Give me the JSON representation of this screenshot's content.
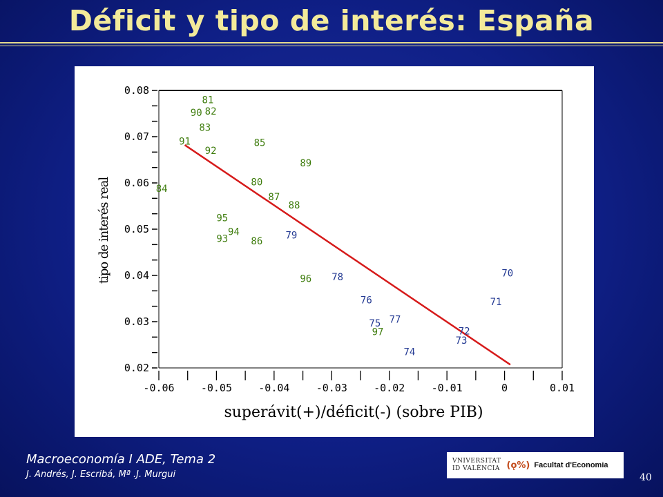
{
  "slide": {
    "title": "Déficit y tipo de interés: España",
    "course": "Macroeconomía I ADE, Tema 2",
    "authors": "J. Andrés, J. Escribá, Mª .J. Murgui",
    "page_number": "40",
    "logo": {
      "university_line1": "VNIVERSITAT",
      "university_line2": "ID VALÈNCIA",
      "mark": "(ǫ%)",
      "faculty": "Facultat d'Economia"
    }
  },
  "colors": {
    "background": "#0f1f86",
    "title": "#f3ea9a",
    "green_points": "#3f7d0e",
    "blue_points": "#243a93",
    "fit_line": "#d61a1a"
  },
  "chart_data": {
    "type": "scatter",
    "title": "",
    "xlabel": "superávit(+)/déficit(-)  (sobre PIB)",
    "ylabel": "tipo de interés real",
    "xlim": [
      -0.06,
      0.01
    ],
    "ylim": [
      0.02,
      0.08
    ],
    "x_ticks": [
      "-0.06",
      "-0.05",
      "-0.04",
      "-0.03",
      "-0.02",
      "-0.01",
      "0",
      "0.01"
    ],
    "y_ticks": [
      "0.02",
      "0.03",
      "0.04",
      "0.05",
      "0.06",
      "0.07",
      "0.08"
    ],
    "grid": false,
    "points": [
      {
        "label": "81",
        "x": -0.0515,
        "y": 0.078,
        "group": "green"
      },
      {
        "label": "90",
        "x": -0.0535,
        "y": 0.0752,
        "group": "green"
      },
      {
        "label": "82",
        "x": -0.051,
        "y": 0.0755,
        "group": "green"
      },
      {
        "label": "83",
        "x": -0.052,
        "y": 0.072,
        "group": "green"
      },
      {
        "label": "91",
        "x": -0.0555,
        "y": 0.069,
        "group": "green"
      },
      {
        "label": "92",
        "x": -0.051,
        "y": 0.067,
        "group": "green"
      },
      {
        "label": "85",
        "x": -0.0425,
        "y": 0.0687,
        "group": "green"
      },
      {
        "label": "89",
        "x": -0.0345,
        "y": 0.0643,
        "group": "green"
      },
      {
        "label": "84",
        "x": -0.0595,
        "y": 0.0588,
        "group": "green"
      },
      {
        "label": "80",
        "x": -0.043,
        "y": 0.0602,
        "group": "green"
      },
      {
        "label": "87",
        "x": -0.04,
        "y": 0.057,
        "group": "green"
      },
      {
        "label": "88",
        "x": -0.0365,
        "y": 0.0552,
        "group": "green"
      },
      {
        "label": "95",
        "x": -0.049,
        "y": 0.0525,
        "group": "green"
      },
      {
        "label": "94",
        "x": -0.047,
        "y": 0.0495,
        "group": "green"
      },
      {
        "label": "93",
        "x": -0.049,
        "y": 0.048,
        "group": "green"
      },
      {
        "label": "86",
        "x": -0.043,
        "y": 0.0475,
        "group": "green"
      },
      {
        "label": "79",
        "x": -0.037,
        "y": 0.0487,
        "group": "blue"
      },
      {
        "label": "96",
        "x": -0.0345,
        "y": 0.0393,
        "group": "green"
      },
      {
        "label": "78",
        "x": -0.029,
        "y": 0.0397,
        "group": "blue"
      },
      {
        "label": "76",
        "x": -0.024,
        "y": 0.0347,
        "group": "blue"
      },
      {
        "label": "75",
        "x": -0.0225,
        "y": 0.0297,
        "group": "blue"
      },
      {
        "label": "77",
        "x": -0.019,
        "y": 0.0305,
        "group": "blue"
      },
      {
        "label": "97",
        "x": -0.022,
        "y": 0.0278,
        "group": "green"
      },
      {
        "label": "74",
        "x": -0.0165,
        "y": 0.0235,
        "group": "blue"
      },
      {
        "label": "72",
        "x": -0.007,
        "y": 0.028,
        "group": "blue"
      },
      {
        "label": "73",
        "x": -0.0075,
        "y": 0.026,
        "group": "blue"
      },
      {
        "label": "71",
        "x": -0.0015,
        "y": 0.0343,
        "group": "blue"
      },
      {
        "label": "70",
        "x": 0.0005,
        "y": 0.0405,
        "group": "blue"
      }
    ],
    "fit_line": {
      "x": [
        -0.0555,
        0.001
      ],
      "y": [
        0.0682,
        0.0207
      ]
    }
  }
}
